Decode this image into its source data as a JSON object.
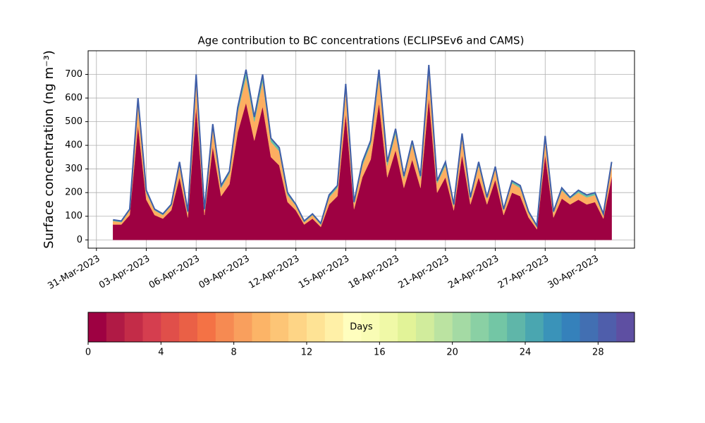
{
  "chart_data": {
    "type": "stacked_area",
    "title": "Age contribution to BC concentrations (ECLIPSEv6 and CAMS)",
    "y_label": "Surface concentration (ng m⁻³)",
    "x": [
      "2023-04-01T00:00",
      "2023-04-01T12:00",
      "2023-04-02T00:00",
      "2023-04-02T12:00",
      "2023-04-03T00:00",
      "2023-04-03T12:00",
      "2023-04-04T00:00",
      "2023-04-04T12:00",
      "2023-04-05T00:00",
      "2023-04-05T12:00",
      "2023-04-06T00:00",
      "2023-04-06T12:00",
      "2023-04-07T00:00",
      "2023-04-07T12:00",
      "2023-04-08T00:00",
      "2023-04-08T12:00",
      "2023-04-09T00:00",
      "2023-04-09T12:00",
      "2023-04-10T00:00",
      "2023-04-10T12:00",
      "2023-04-11T00:00",
      "2023-04-11T12:00",
      "2023-04-12T00:00",
      "2023-04-12T12:00",
      "2023-04-13T00:00",
      "2023-04-13T12:00",
      "2023-04-14T00:00",
      "2023-04-14T12:00",
      "2023-04-15T00:00",
      "2023-04-15T12:00",
      "2023-04-16T00:00",
      "2023-04-16T12:00",
      "2023-04-17T00:00",
      "2023-04-17T12:00",
      "2023-04-18T00:00",
      "2023-04-18T12:00",
      "2023-04-19T00:00",
      "2023-04-19T12:00",
      "2023-04-20T00:00",
      "2023-04-20T12:00",
      "2023-04-21T00:00",
      "2023-04-21T12:00",
      "2023-04-22T00:00",
      "2023-04-22T12:00",
      "2023-04-23T00:00",
      "2023-04-23T12:00",
      "2023-04-24T00:00",
      "2023-04-24T12:00",
      "2023-04-25T00:00",
      "2023-04-25T12:00",
      "2023-04-26T00:00",
      "2023-04-26T12:00",
      "2023-04-27T00:00",
      "2023-04-27T12:00",
      "2023-04-28T00:00",
      "2023-04-28T12:00",
      "2023-04-29T00:00",
      "2023-04-29T12:00",
      "2023-04-30T00:00",
      "2023-04-30T12:00",
      "2023-05-01T00:00"
    ],
    "series": [
      {
        "color": "#9e0142",
        "values": [
          65,
          65,
          105,
          485,
          170,
          105,
          90,
          125,
          265,
          95,
          565,
          105,
          395,
          185,
          235,
          455,
          580,
          420,
          565,
          350,
          315,
          160,
          125,
          65,
          90,
          55,
          150,
          185,
          535,
          130,
          265,
          340,
          580,
          265,
          380,
          220,
          340,
          220,
          600,
          200,
          265,
          125,
          360,
          150,
          265,
          150,
          255,
          105,
          200,
          185,
          95,
          45,
          360,
          95,
          175,
          150,
          170,
          150,
          160,
          90,
          265
        ]
      },
      {
        "color": "#fdae61",
        "values": [
          15,
          10,
          20,
          90,
          30,
          20,
          15,
          20,
          50,
          20,
          105,
          20,
          75,
          35,
          45,
          85,
          110,
          80,
          105,
          65,
          60,
          30,
          20,
          10,
          15,
          10,
          30,
          35,
          100,
          25,
          50,
          65,
          110,
          50,
          70,
          40,
          65,
          40,
          110,
          40,
          50,
          20,
          70,
          25,
          50,
          25,
          45,
          20,
          40,
          35,
          20,
          10,
          65,
          20,
          35,
          25,
          30,
          30,
          30,
          15,
          50
        ]
      },
      {
        "color": "#66c2a5",
        "line_color": "#3f5ea8",
        "values": [
          5,
          5,
          5,
          25,
          10,
          5,
          5,
          5,
          15,
          5,
          30,
          5,
          20,
          10,
          10,
          20,
          30,
          20,
          30,
          15,
          15,
          10,
          5,
          5,
          5,
          5,
          10,
          10,
          25,
          5,
          15,
          15,
          30,
          15,
          20,
          10,
          15,
          10,
          30,
          10,
          15,
          5,
          20,
          5,
          15,
          5,
          10,
          5,
          10,
          10,
          5,
          5,
          15,
          5,
          10,
          5,
          10,
          10,
          10,
          5,
          15
        ]
      }
    ],
    "xlim": [
      "2023-03-30T12:00",
      "2023-05-02T09:00"
    ],
    "xticks": [
      {
        "value": "2023-03-31T00:00",
        "label": "31-Mar-2023"
      },
      {
        "value": "2023-04-03T00:00",
        "label": "03-Apr-2023"
      },
      {
        "value": "2023-04-06T00:00",
        "label": "06-Apr-2023"
      },
      {
        "value": "2023-04-09T00:00",
        "label": "09-Apr-2023"
      },
      {
        "value": "2023-04-12T00:00",
        "label": "12-Apr-2023"
      },
      {
        "value": "2023-04-15T00:00",
        "label": "15-Apr-2023"
      },
      {
        "value": "2023-04-18T00:00",
        "label": "18-Apr-2023"
      },
      {
        "value": "2023-04-21T00:00",
        "label": "21-Apr-2023"
      },
      {
        "value": "2023-04-24T00:00",
        "label": "24-Apr-2023"
      },
      {
        "value": "2023-04-27T00:00",
        "label": "27-Apr-2023"
      },
      {
        "value": "2023-04-30T00:00",
        "label": "30-Apr-2023"
      }
    ],
    "ylim": [
      -35,
      800
    ],
    "yticks": [
      0,
      100,
      200,
      300,
      400,
      500,
      600,
      700
    ],
    "grid": true,
    "colorbar": {
      "label": "Days",
      "lim": [
        0,
        30
      ],
      "ticks": [
        0,
        4,
        8,
        12,
        16,
        20,
        24,
        28
      ],
      "colors": [
        "#9e0142",
        "#b01a45",
        "#c32c48",
        "#d53e4f",
        "#e04f4a",
        "#ea6046",
        "#f47245",
        "#f68a52",
        "#f99f5d",
        "#fcb467",
        "#fdc576",
        "#fed586",
        "#fee395",
        "#fff0a7",
        "#fffebe",
        "#f9fcb5",
        "#f0f9a7",
        "#e2f398",
        "#d1ec9c",
        "#bbe3a1",
        "#a4daa4",
        "#8ad0a4",
        "#73c6a5",
        "#5fb6a9",
        "#4aa6b0",
        "#3a93b9",
        "#3581bb",
        "#426fb2",
        "#4f5eab",
        "#5e4fa2"
      ]
    }
  }
}
